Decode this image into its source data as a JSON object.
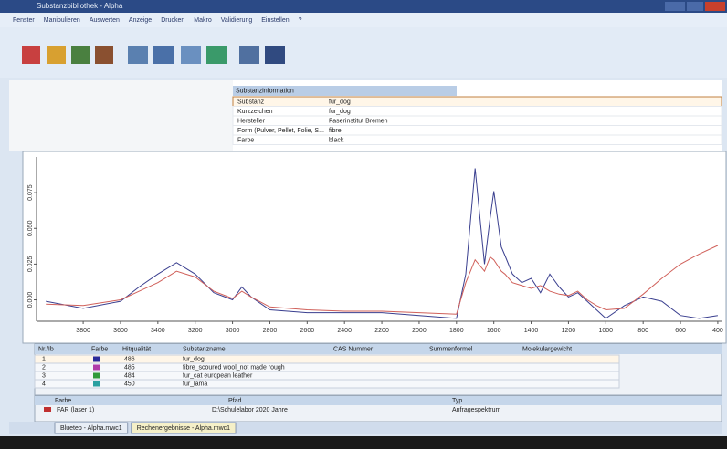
{
  "window": {
    "title": "Substanzbibliothek - Alpha",
    "menu": [
      "Fenster",
      "Manipulieren",
      "Auswerten",
      "Anzeige",
      "Drucken",
      "Makro",
      "Validierung",
      "Einstellen",
      "?"
    ]
  },
  "substance_info": {
    "header": "Substanzinformation",
    "rows": [
      [
        "Substanz",
        "fur_dog"
      ],
      [
        "Kurzzeichen",
        "fur_dog"
      ],
      [
        "Hersteller",
        "Faserinstitut Bremen"
      ],
      [
        "Form (Pulver, Pellet, Folie, S...",
        "fibre"
      ],
      [
        "Farbe",
        "black"
      ]
    ]
  },
  "spectrum": {
    "type": "line",
    "x": [
      4000,
      3800,
      3600,
      3500,
      3400,
      3300,
      3200,
      3100,
      3000,
      2950,
      2900,
      2800,
      2600,
      2400,
      2200,
      2000,
      1800,
      1750,
      1700,
      1650,
      1620,
      1600,
      1560,
      1540,
      1500,
      1450,
      1400,
      1350,
      1300,
      1250,
      1200,
      1150,
      1100,
      1050,
      1000,
      900,
      800,
      700,
      600,
      500,
      400
    ],
    "xlim": [
      4050,
      380
    ],
    "xticks": [
      3800,
      3600,
      3400,
      3200,
      3000,
      2800,
      2600,
      2400,
      2200,
      2000,
      1800,
      1600,
      1400,
      1200,
      1000,
      800,
      600,
      400
    ],
    "ylim": [
      -0.015,
      0.1
    ],
    "yticks": [
      {
        "value": 0,
        "label": "0.000"
      },
      {
        "value": 0.025,
        "label": "0.025"
      },
      {
        "value": 0.05,
        "label": "0.050"
      },
      {
        "value": 0.075,
        "label": "0.075"
      }
    ],
    "series": [
      {
        "color": "#3a3f8f",
        "values": [
          -0.001,
          -0.006,
          -0.001,
          0.009,
          0.018,
          0.026,
          0.018,
          0.005,
          0.0,
          0.009,
          0.002,
          -0.007,
          -0.009,
          -0.009,
          -0.009,
          -0.011,
          -0.013,
          0.018,
          0.092,
          0.025,
          0.057,
          0.076,
          0.037,
          0.031,
          0.018,
          0.012,
          0.015,
          0.005,
          0.018,
          0.009,
          0.002,
          0.005,
          -0.001,
          -0.007,
          -0.013,
          -0.004,
          0.002,
          -0.001,
          -0.011,
          -0.013,
          -0.011
        ]
      },
      {
        "color": "#d0605a",
        "values": [
          -0.003,
          -0.004,
          0.0,
          0.006,
          0.012,
          0.02,
          0.016,
          0.006,
          0.001,
          0.006,
          0.002,
          -0.005,
          -0.007,
          -0.008,
          -0.008,
          -0.009,
          -0.01,
          0.012,
          0.028,
          0.02,
          0.03,
          0.028,
          0.02,
          0.018,
          0.012,
          0.01,
          0.008,
          0.01,
          0.006,
          0.004,
          0.003,
          0.006,
          0.0,
          -0.004,
          -0.007,
          -0.006,
          0.004,
          0.015,
          0.025,
          0.032,
          0.038
        ]
      }
    ]
  },
  "hits": {
    "columns": [
      "Nr./Ib",
      "Farbe",
      "Hitqualität",
      "Substanzname",
      "CAS Nummer",
      "Summenformel",
      "Molekulargewicht"
    ],
    "rows": [
      {
        "no": 1,
        "color": "#2a2a9a",
        "quality": 486,
        "name": "fur_dog"
      },
      {
        "no": 2,
        "color": "#b03aa8",
        "quality": 485,
        "name": "fibre_scoured wool_not made rough"
      },
      {
        "no": 3,
        "color": "#2f9a3a",
        "quality": 484,
        "name": "fur_cat european leather"
      },
      {
        "no": 4,
        "color": "#2aa0a0",
        "quality": 450,
        "name": "fur_lama"
      }
    ]
  },
  "query": {
    "columns": [
      "Farbe",
      "Pfad",
      "Typ"
    ],
    "color": "#c03030",
    "label": "FAR (laser 1)",
    "path": "D:\\Schulelabor 2020 Jahre",
    "type": "Anfragespektrum"
  },
  "tabs": [
    "Bluetep - Alpha.mwc1",
    "Rechenergebnisse - Alpha.mwc1"
  ]
}
